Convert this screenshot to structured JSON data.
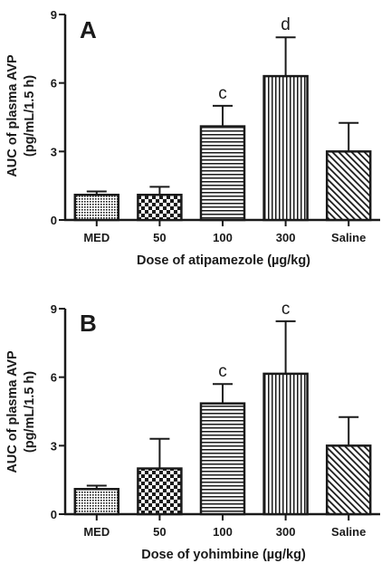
{
  "chart_data": [
    {
      "type": "bar",
      "panel": "A",
      "categories": [
        "MED",
        "50",
        "100",
        "300",
        "Saline"
      ],
      "values": [
        1.1,
        1.1,
        4.1,
        6.3,
        3.0
      ],
      "errors": [
        0.15,
        0.35,
        0.9,
        1.7,
        1.25
      ],
      "annotations": [
        "",
        "",
        "c",
        "d",
        ""
      ],
      "patterns": [
        "dots",
        "checker",
        "horizontal",
        "vertical",
        "diagonal"
      ],
      "xlabel": "Dose of atipamezole (µg/kg)",
      "ylabel": [
        "AUC of plasma AVP",
        "(pg/mL/1.5 h)"
      ],
      "ylim": [
        0,
        9
      ],
      "yticks": [
        0,
        3,
        6,
        9
      ]
    },
    {
      "type": "bar",
      "panel": "B",
      "categories": [
        "MED",
        "50",
        "100",
        "300",
        "Saline"
      ],
      "values": [
        1.1,
        2.0,
        4.85,
        6.15,
        3.0
      ],
      "errors": [
        0.15,
        1.3,
        0.85,
        2.3,
        1.25
      ],
      "annotations": [
        "",
        "",
        "c",
        "c",
        ""
      ],
      "patterns": [
        "dots",
        "checker",
        "horizontal",
        "vertical",
        "diagonal"
      ],
      "xlabel": "Dose of yohimbine (µg/kg)",
      "ylabel": [
        "AUC of plasma AVP",
        "(pg/mL/1.5 h)"
      ],
      "ylim": [
        0,
        9
      ],
      "yticks": [
        0,
        3,
        6,
        9
      ]
    }
  ],
  "colors": {
    "ink": "#1a1a1a",
    "background": "#ffffff"
  }
}
